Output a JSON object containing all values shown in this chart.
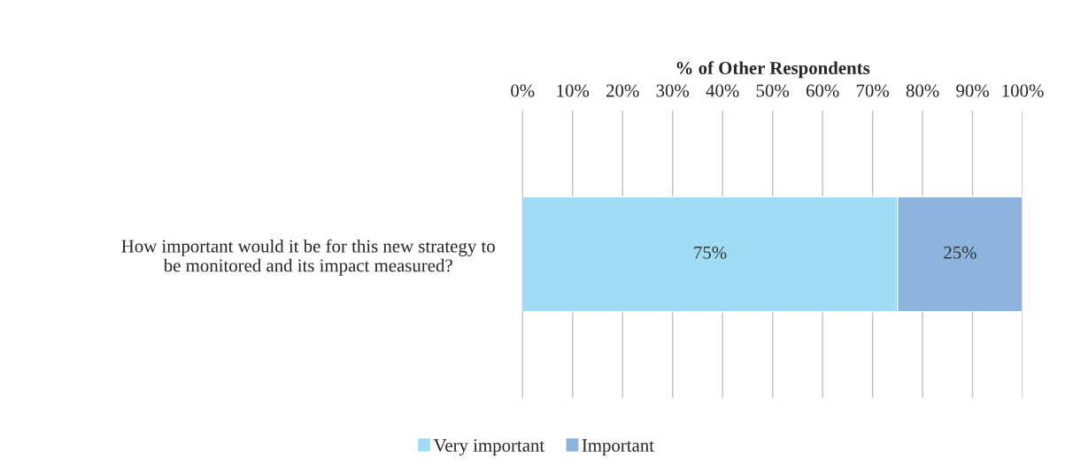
{
  "chart_data": {
    "type": "bar",
    "orientation": "horizontal",
    "stacked": true,
    "xlabel": "% of Other Respondents",
    "categories": [
      "How important would it be for this new strategy to\nbe monitored and its impact measured?"
    ],
    "series": [
      {
        "name": "Very important",
        "color": "#a0dcf4",
        "values": [
          75
        ],
        "value_labels": [
          "75%"
        ]
      },
      {
        "name": "Important",
        "color": "#8db4dc",
        "values": [
          25
        ],
        "value_labels": [
          "25%"
        ]
      }
    ],
    "xlim": [
      0,
      100
    ],
    "xticks": [
      {
        "value": 0,
        "label": "0%"
      },
      {
        "value": 10,
        "label": "10%"
      },
      {
        "value": 20,
        "label": "20%"
      },
      {
        "value": 30,
        "label": "30%"
      },
      {
        "value": 40,
        "label": "40%"
      },
      {
        "value": 50,
        "label": "50%"
      },
      {
        "value": 60,
        "label": "60%"
      },
      {
        "value": 70,
        "label": "70%"
      },
      {
        "value": 80,
        "label": "80%"
      },
      {
        "value": 90,
        "label": "90%"
      },
      {
        "value": 100,
        "label": "100%"
      }
    ],
    "grid": "x",
    "legend": "bottom"
  }
}
